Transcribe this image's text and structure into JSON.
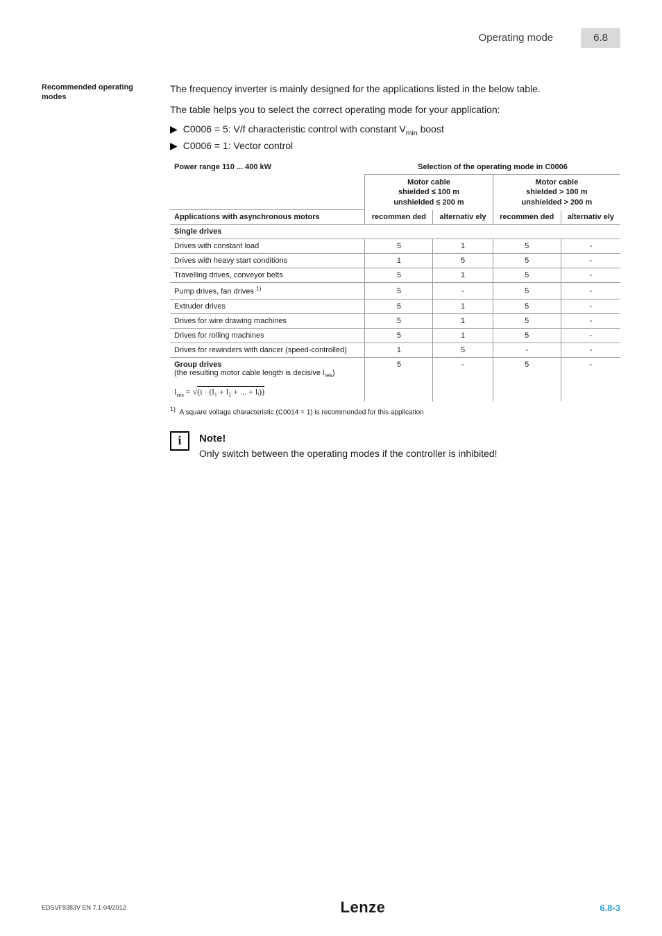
{
  "header": {
    "title": "Operating mode",
    "section": "6.8"
  },
  "sidebar": {
    "heading": "Recommended operating modes"
  },
  "intro": {
    "p1": "The frequency inverter is mainly designed for the applications listed in the below table.",
    "p2": "The table helps you to select the correct operating mode for your application:",
    "bullet1_pre": "C0006 = 5: V/f characteristic control with constant V",
    "bullet1_sub": "min",
    "bullet1_post": " boost",
    "bullet2": "C0006 = 1: Vector control"
  },
  "table": {
    "power_label": "Power range 110 ... 400 kW",
    "selection_label": "Selection of the operating mode in C0006",
    "cable_a_l1": "Motor cable",
    "cable_a_l2": "shielded ≤ 100 m",
    "cable_a_l3": "unshielded ≤ 200 m",
    "cable_b_l1": "Motor cable",
    "cable_b_l2": "shielded > 100 m",
    "cable_b_l3": "unshielded > 200 m",
    "apps_label": "Applications with asynchronous motors",
    "col_rec": "recommen ded",
    "col_alt": "alternativ ely",
    "section_single": "Single drives",
    "rows": [
      {
        "label": "Drives with constant load",
        "c": [
          "5",
          "1",
          "5",
          "-"
        ]
      },
      {
        "label": "Drives with heavy start conditions",
        "c": [
          "1",
          "5",
          "5",
          "-"
        ]
      },
      {
        "label": "Travelling drives, conveyor belts",
        "c": [
          "5",
          "1",
          "5",
          "-"
        ]
      },
      {
        "label": "Pump drives, fan drives ",
        "sup": "1)",
        "c": [
          "5",
          "-",
          "5",
          "-"
        ]
      },
      {
        "label": "Extruder drives",
        "c": [
          "5",
          "1",
          "5",
          "-"
        ]
      },
      {
        "label": "Drives for wire drawing machines",
        "c": [
          "5",
          "1",
          "5",
          "-"
        ]
      },
      {
        "label": "Drives for rolling machines",
        "c": [
          "5",
          "1",
          "5",
          "-"
        ]
      },
      {
        "label": "Drives for rewinders with dancer (speed-controlled)",
        "c": [
          "1",
          "5",
          "-",
          "-"
        ]
      }
    ],
    "group_label_l1": "Group drives",
    "group_label_l2": "(the resulting motor cable length is decisive l",
    "group_label_sub": "res",
    "group_label_l2b": ")",
    "group_cells": [
      "5",
      "-",
      "5",
      "-"
    ],
    "formula_lhs": "l",
    "formula_sub1": "res",
    "formula_eq": " = ",
    "formula_inner": "(i · (l₁ + l₂ + ... + lᵢ))"
  },
  "footnote": {
    "num": "1)",
    "text": "A square voltage characteristic (C0014 = 1) is recommended for this application"
  },
  "note": {
    "title": "Note!",
    "body": "Only switch between the operating modes if the controller is inhibited!"
  },
  "footer": {
    "doc_id": "EDSVF9383V EN 7.1-04/2012",
    "logo": "Lenze",
    "page": "6.8-3"
  },
  "colors": {
    "header_pill_bg": "#d9d9d9",
    "page_num": "#2aa0d8",
    "border": "#999999"
  }
}
